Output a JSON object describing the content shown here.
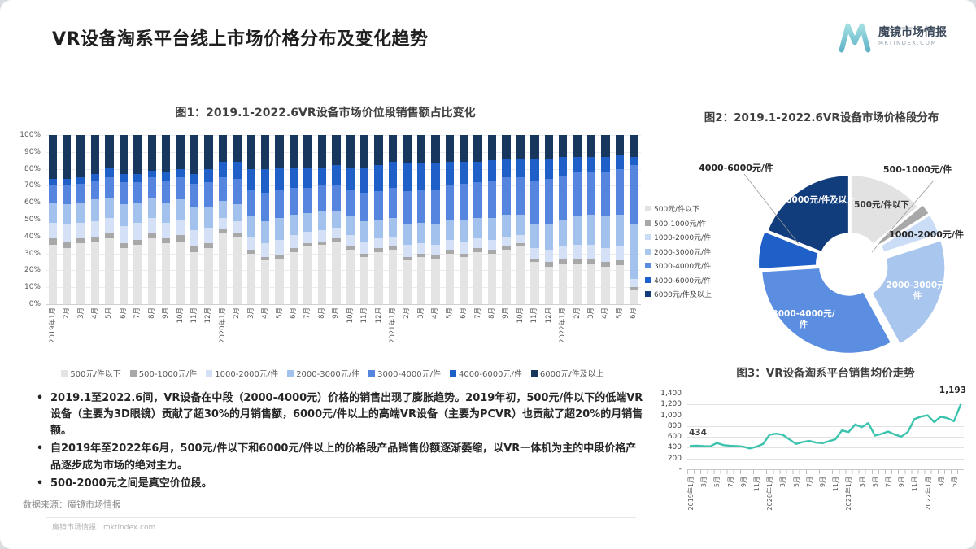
{
  "header": {
    "title": "VR设备淘系平台线上市场价格分布及变化趋势",
    "logo": {
      "brand": "魔镜市场情报",
      "site": "MKTINDEX.COM",
      "accent_color": "#5fc0cd"
    }
  },
  "figures": {
    "fig1_title": "图1：2019.1-2022.6VR设备市场价位段销售额占比变化",
    "fig2_title": "图2：2019.1-2022.6VR设备市场价格段分布",
    "fig3_title": "图3：VR设备淘系平台销售均价走势"
  },
  "bullets": [
    "2019.1至2022.6间，VR设备在中段（2000-4000元）价格的销售出现了膨胀趋势。2019年初，500元/件以下的低端VR设备（主要为3D眼镜）贡献了超30%的月销售额，6000元/件以上的高端VR设备（主要为PCVR）也贡献了超20%的月销售额。",
    "自2019年至2022年6月，500元/件以下和6000元/件以上的价格段产品销售份额逐渐萎缩，以VR一体机为主的中段价格产品逐步成为市场的绝对主力。",
    "500-2000元之间是真空价位段。"
  ],
  "source_note": "数据来源：魔镜市场情报",
  "footer": {
    "credit": "魔镜市场情报：mktindex.com"
  },
  "chart_data": [
    {
      "id": "fig1",
      "type": "bar",
      "stacked": true,
      "units": "% of monthly sales value",
      "title": "图1：2019.1-2022.6VR设备市场价位段销售额占比变化",
      "ylim": [
        0,
        100
      ],
      "y_ticks": [
        "0%",
        "10%",
        "20%",
        "30%",
        "40%",
        "50%",
        "60%",
        "70%",
        "80%",
        "90%",
        "100%"
      ],
      "legend_position": "bottom",
      "categories": [
        "2019年1月",
        "2月",
        "3月",
        "4月",
        "5月",
        "6月",
        "7月",
        "8月",
        "9月",
        "10月",
        "11月",
        "12月",
        "2020年1月",
        "2月",
        "3月",
        "4月",
        "5月",
        "6月",
        "7月",
        "8月",
        "9月",
        "10月",
        "11月",
        "12月",
        "2021年1月",
        "2月",
        "3月",
        "4月",
        "5月",
        "6月",
        "7月",
        "8月",
        "9月",
        "10月",
        "11月",
        "12月",
        "2022年1月",
        "2月",
        "3月",
        "4月",
        "5月",
        "6月"
      ],
      "series": [
        {
          "name": "500元/件以下",
          "color": "#e4e4e4",
          "values": [
            35,
            33,
            36,
            37,
            39,
            33,
            35,
            39,
            36,
            37,
            31,
            33,
            42,
            40,
            30,
            26,
            27,
            31,
            34,
            35,
            37,
            32,
            28,
            31,
            32,
            26,
            28,
            27,
            30,
            28,
            31,
            30,
            32,
            34,
            25,
            22,
            24,
            24,
            24,
            22,
            23,
            8
          ]
        },
        {
          "name": "500-1000元/件",
          "color": "#a8a8a8",
          "values": [
            4,
            4,
            3,
            3,
            3,
            3,
            3,
            3,
            3,
            4,
            3,
            3,
            2,
            2,
            2,
            2,
            2,
            2,
            2,
            2,
            2,
            2,
            2,
            2,
            2,
            2,
            2,
            2,
            2,
            2,
            2,
            2,
            2,
            2,
            2,
            3,
            3,
            3,
            3,
            3,
            3,
            2
          ]
        },
        {
          "name": "1000-2000元/件",
          "color": "#d4e0f6",
          "values": [
            9,
            10,
            9,
            9,
            9,
            10,
            10,
            9,
            9,
            9,
            10,
            9,
            7,
            7,
            8,
            8,
            9,
            8,
            7,
            7,
            6,
            7,
            7,
            6,
            6,
            7,
            6,
            6,
            6,
            7,
            6,
            6,
            6,
            5,
            6,
            7,
            7,
            8,
            8,
            8,
            8,
            5
          ]
        },
        {
          "name": "2000-3000元/件",
          "color": "#a2c1ec",
          "values": [
            12,
            12,
            12,
            13,
            12,
            13,
            12,
            12,
            12,
            12,
            13,
            12,
            10,
            10,
            12,
            13,
            13,
            12,
            11,
            11,
            10,
            11,
            12,
            11,
            11,
            12,
            12,
            12,
            12,
            13,
            12,
            13,
            13,
            12,
            14,
            15,
            16,
            17,
            18,
            19,
            19,
            32
          ]
        },
        {
          "name": "3000-4000元/件",
          "color": "#5585de",
          "values": [
            10,
            11,
            11,
            11,
            12,
            13,
            12,
            12,
            13,
            13,
            14,
            15,
            14,
            15,
            16,
            17,
            17,
            16,
            15,
            15,
            15,
            16,
            17,
            17,
            18,
            20,
            20,
            21,
            20,
            21,
            21,
            22,
            22,
            22,
            26,
            27,
            26,
            26,
            25,
            26,
            27,
            35
          ]
        },
        {
          "name": "4000-6000元/件",
          "color": "#1f5fc8",
          "values": [
            4,
            4,
            4,
            4,
            6,
            5,
            5,
            4,
            5,
            5,
            6,
            8,
            9,
            10,
            12,
            14,
            13,
            12,
            12,
            11,
            12,
            13,
            15,
            15,
            15,
            16,
            15,
            15,
            14,
            13,
            12,
            12,
            11,
            11,
            13,
            12,
            11,
            9,
            9,
            9,
            8,
            5
          ]
        },
        {
          "name": "6000元/件及以上",
          "color": "#17375e",
          "values": [
            26,
            26,
            25,
            23,
            19,
            23,
            23,
            21,
            22,
            20,
            23,
            20,
            16,
            16,
            20,
            20,
            19,
            19,
            19,
            19,
            18,
            19,
            19,
            18,
            16,
            17,
            17,
            17,
            16,
            16,
            16,
            15,
            14,
            14,
            14,
            14,
            13,
            13,
            13,
            13,
            12,
            13
          ]
        }
      ]
    },
    {
      "id": "fig2",
      "type": "pie",
      "donut": true,
      "title": "图2：2019.1-2022.6VR设备市场价格段分布",
      "units": "% of sales value 2019.1-2022.6",
      "legend_position": "left",
      "slices": [
        {
          "label": "500元/件以下",
          "value": 14,
          "color": "#e2e2e2",
          "explode": 2
        },
        {
          "label": "500-1000元/件",
          "value": 2,
          "color": "#a8a8a8",
          "explode": 8
        },
        {
          "label": "1000-2000元/件",
          "value": 4,
          "color": "#cbdcf6",
          "explode": 8
        },
        {
          "label": "2000-3000元/件",
          "value": 22,
          "color": "#a9c6ee",
          "explode": 10
        },
        {
          "label": "3000-4000元/件",
          "value": 32,
          "color": "#5b8de0",
          "explode": 2
        },
        {
          "label": "4000-6000元/件",
          "value": 7,
          "color": "#1f5fc8",
          "explode": 5
        },
        {
          "label": "6000元/件及以上",
          "value": 19,
          "color": "#123d7c",
          "explode": 2
        }
      ]
    },
    {
      "id": "fig3",
      "type": "line",
      "title": "图3：VR设备淘系平台销售均价走势",
      "units": "元",
      "color": "#3cc3ae",
      "ylim": [
        0,
        1400
      ],
      "y_ticks": [
        "-",
        "200",
        "400",
        "600",
        "800",
        "1,000",
        "1,200",
        "1,400"
      ],
      "x": [
        "2019年1月",
        "2月",
        "3月",
        "4月",
        "5月",
        "6月",
        "7月",
        "8月",
        "9月",
        "10月",
        "11月",
        "12月",
        "2020年1月",
        "2月",
        "3月",
        "4月",
        "5月",
        "6月",
        "7月",
        "8月",
        "9月",
        "10月",
        "11月",
        "12月",
        "2021年1月",
        "2月",
        "3月",
        "4月",
        "5月",
        "6月",
        "7月",
        "8月",
        "9月",
        "10月",
        "11月",
        "12月",
        "2022年1月",
        "2月",
        "3月",
        "4月",
        "5月",
        "6月"
      ],
      "x_tick_labels": [
        "2019年1月",
        "3月",
        "5月",
        "7月",
        "9月",
        "11月",
        "2020年1月",
        "3月",
        "5月",
        "7月",
        "9月",
        "11月",
        "2021年1月",
        "3月",
        "5月",
        "7月",
        "9月",
        "11月",
        "2022年1月",
        "3月",
        "5月"
      ],
      "values": [
        434,
        438,
        430,
        426,
        487,
        448,
        435,
        430,
        420,
        386,
        418,
        468,
        640,
        660,
        640,
        555,
        470,
        505,
        525,
        495,
        485,
        520,
        555,
        720,
        690,
        830,
        780,
        855,
        625,
        655,
        700,
        645,
        605,
        690,
        930,
        975,
        1000,
        875,
        975,
        945,
        890,
        1193
      ],
      "annotations": [
        {
          "index": 0,
          "text": "434"
        },
        {
          "index": 41,
          "text": "1,193"
        }
      ]
    }
  ]
}
